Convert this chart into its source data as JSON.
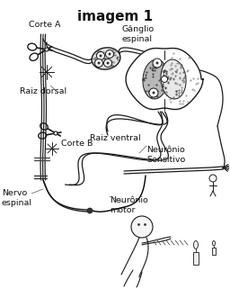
{
  "title": "imagem 1",
  "title_fontsize": 11,
  "title_fontweight": "bold",
  "bg_color": "#ffffff",
  "labels": {
    "corte_a": "Corte A",
    "ganglio": "Gânglio\nespinal",
    "raiz_dorsal": "Raiz dorsal",
    "raiz_ventral": "Raiz ventral",
    "corte_b": "Corte B",
    "neuronio_sensitivo": "Neurônio\nSensitivo",
    "nervo_espinal": "Nervo\nespinal",
    "neuronio_motor": "Neurônio\nmotor"
  },
  "figsize": [
    2.56,
    3.21
  ],
  "dpi": 100
}
